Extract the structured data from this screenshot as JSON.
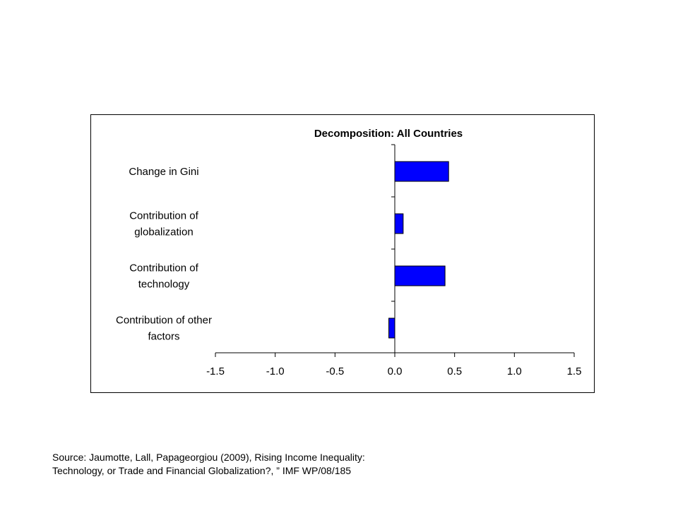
{
  "chart_data": {
    "type": "bar",
    "orientation": "horizontal",
    "title": "Decomposition: All Countries",
    "categories": [
      [
        "Change in Gini"
      ],
      [
        "Contribution of",
        "globalization"
      ],
      [
        "Contribution of",
        "technology"
      ],
      [
        "Contribution of other",
        "factors"
      ]
    ],
    "values": [
      0.45,
      0.07,
      0.42,
      -0.05
    ],
    "xlim": [
      -1.5,
      1.5
    ],
    "xticks": [
      -1.5,
      -1.0,
      -0.5,
      0.0,
      0.5,
      1.0,
      1.5
    ],
    "xtick_labels": [
      "-1.5",
      "-1.0",
      "-0.5",
      "0.0",
      "0.5",
      "1.0",
      "1.5"
    ],
    "xlabel": "",
    "ylabel": "",
    "grid": false,
    "bar_color": "#0000ff",
    "bar_edge_color": "#000000"
  },
  "source": {
    "line1": "Source: Jaumotte, Lall, Papageorgiou (2009), Rising Income Inequality:",
    "line2": "Technology, or Trade and Financial Globalization?, ” IMF WP/08/185"
  }
}
